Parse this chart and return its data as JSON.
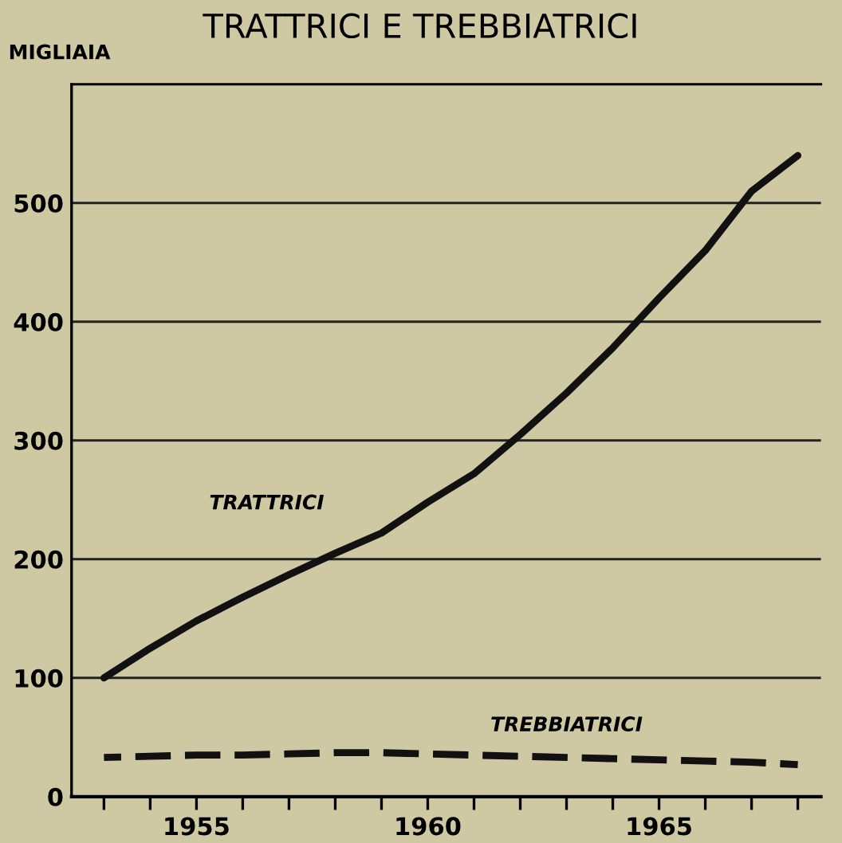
{
  "chart_data": {
    "type": "line",
    "title": "TRATTRICI E TREBBIATRICI",
    "ylabel": "MIGLIAIA",
    "x": [
      1953,
      1954,
      1955,
      1956,
      1957,
      1958,
      1959,
      1960,
      1961,
      1962,
      1963,
      1964,
      1965,
      1966,
      1967,
      1968
    ],
    "series": [
      {
        "name": "TRATTRICI",
        "color": "#111111",
        "line_style": "solid",
        "values": [
          100,
          125,
          148,
          168,
          187,
          205,
          222,
          248,
          272,
          305,
          340,
          378,
          420,
          460,
          510,
          540
        ]
      },
      {
        "name": "TREBBIATRICI",
        "color": "#111111",
        "line_style": "dashed",
        "values": [
          33,
          34,
          35,
          35,
          36,
          37,
          37,
          36,
          35,
          34,
          33,
          32,
          31,
          30,
          29,
          27
        ]
      }
    ],
    "xlim": [
      1952.3,
      1968.5
    ],
    "ylim": [
      0,
      600
    ],
    "xticks": [
      {
        "value": 1953,
        "label": null
      },
      {
        "value": 1954,
        "label": null
      },
      1955,
      {
        "value": 1956,
        "label": null
      },
      {
        "value": 1957,
        "label": null
      },
      {
        "value": 1958,
        "label": null
      },
      {
        "value": 1959,
        "label": null
      },
      1960,
      {
        "value": 1961,
        "label": null
      },
      {
        "value": 1962,
        "label": null
      },
      {
        "value": 1963,
        "label": null
      },
      {
        "value": 1964,
        "label": null
      },
      1965,
      {
        "value": 1966,
        "label": null
      },
      {
        "value": 1967,
        "label": null
      },
      {
        "value": 1968,
        "label": null
      }
    ],
    "yticks": [
      0,
      100,
      200,
      300,
      400,
      500
    ],
    "grid": "y",
    "legend": false,
    "marker": "none"
  }
}
